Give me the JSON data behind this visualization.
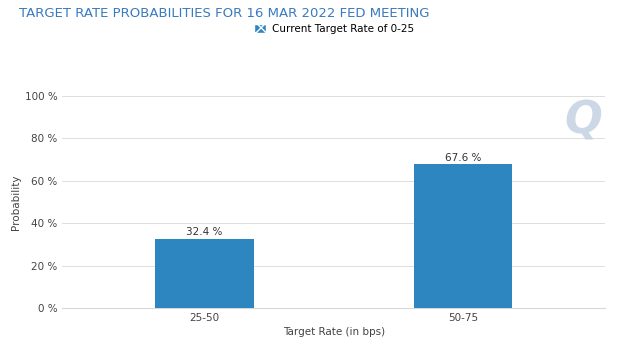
{
  "title": "TARGET RATE PROBABILITIES FOR 16 MAR 2022 FED MEETING",
  "legend_label": "Current Target Rate of 0-25",
  "categories": [
    "25-50",
    "50-75"
  ],
  "values": [
    32.4,
    67.6
  ],
  "bar_color": "#2e86c1",
  "xlabel": "Target Rate (in bps)",
  "ylabel": "Probability",
  "ylim": [
    0,
    100
  ],
  "yticks": [
    0,
    20,
    40,
    60,
    80,
    100
  ],
  "ytick_labels": [
    "0 %",
    "20 %",
    "40 %",
    "60 %",
    "80 %",
    "100 %"
  ],
  "title_color": "#3a7abf",
  "title_fontsize": 9.5,
  "axis_label_fontsize": 7.5,
  "tick_fontsize": 7.5,
  "bar_label_fontsize": 7.5,
  "background_color": "#ffffff",
  "grid_color": "#d8d8d8",
  "watermark_text": "Q",
  "watermark_color": "#bbccdd"
}
